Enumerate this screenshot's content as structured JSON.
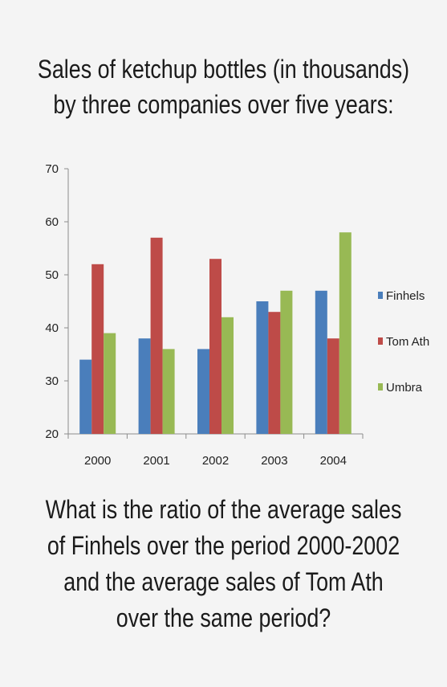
{
  "title_lines": [
    "Sales of ketchup bottles (in thousands)",
    "by three companies over five years:"
  ],
  "question_lines": [
    "What is the ratio of the average sales",
    "of Finhels over the period 2000-2002",
    "and the average sales of Tom Ath",
    "over the same period?"
  ],
  "chart_data": {
    "type": "bar",
    "categories": [
      "2000",
      "2001",
      "2002",
      "2003",
      "2004"
    ],
    "series": [
      {
        "name": "Finhels",
        "color": "#4a7ebb",
        "values": [
          34,
          38,
          36,
          45,
          47
        ]
      },
      {
        "name": "Tom Ath",
        "color": "#be4b48",
        "values": [
          52,
          57,
          53,
          43,
          38
        ]
      },
      {
        "name": "Umbra",
        "color": "#98b954",
        "values": [
          39,
          36,
          42,
          47,
          58
        ]
      }
    ],
    "ylim": [
      20,
      70
    ],
    "yticks": [
      "20",
      "30",
      "40",
      "50",
      "60",
      "70"
    ],
    "legend_position": "right",
    "grid": false
  }
}
